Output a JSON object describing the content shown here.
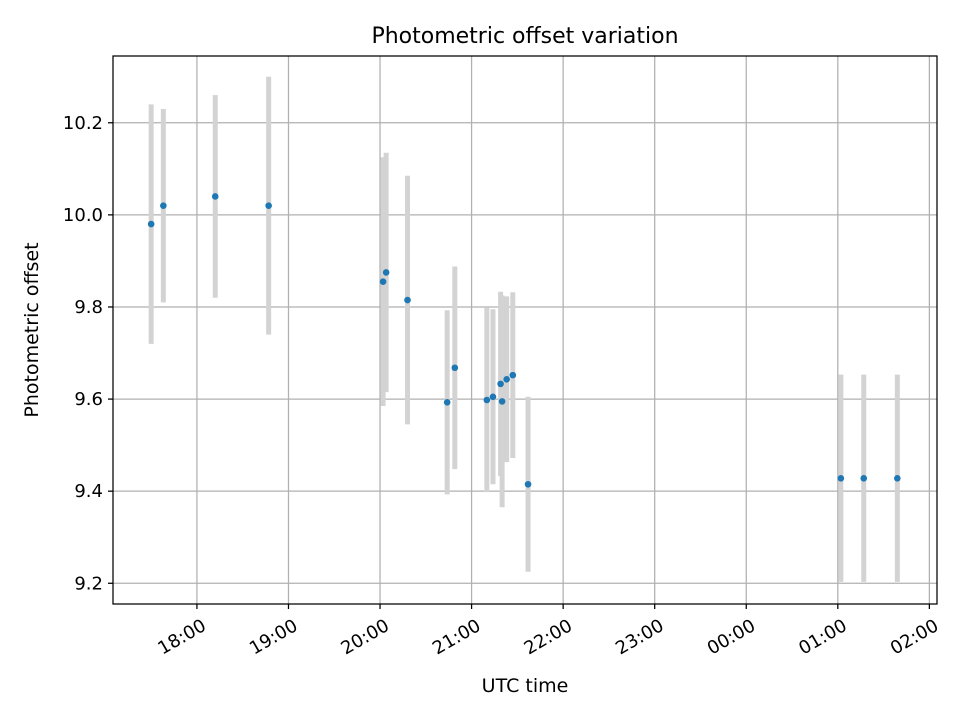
{
  "chart_data": {
    "type": "scatter",
    "title": "Photometric offset variation",
    "xlabel": "UTC time",
    "ylabel": "Photometric offset",
    "x_axis": "time",
    "xlim": [
      "17:05",
      "02:05"
    ],
    "ylim": [
      9.155,
      10.345
    ],
    "xticks": [
      {
        "label": "18:00",
        "time": "18:00"
      },
      {
        "label": "19:00",
        "time": "19:00"
      },
      {
        "label": "20:00",
        "time": "20:00"
      },
      {
        "label": "21:00",
        "time": "21:00"
      },
      {
        "label": "22:00",
        "time": "22:00"
      },
      {
        "label": "23:00",
        "time": "23:00"
      },
      {
        "label": "00:00",
        "time": "00:00"
      },
      {
        "label": "01:00",
        "time": "01:00"
      },
      {
        "label": "02:00",
        "time": "02:00"
      }
    ],
    "yticks": [
      {
        "label": "9.2",
        "value": 9.2
      },
      {
        "label": "9.4",
        "value": 9.4
      },
      {
        "label": "9.6",
        "value": 9.6
      },
      {
        "label": "9.8",
        "value": 9.8
      },
      {
        "label": "10.0",
        "value": 10.0
      },
      {
        "label": "10.2",
        "value": 10.2
      }
    ],
    "grid": true,
    "marker_color": "#1f77b4",
    "errorbar_color": "#d3d3d3",
    "points": [
      {
        "time": "17:30",
        "y": 9.98,
        "err": 0.26
      },
      {
        "time": "17:38",
        "y": 10.02,
        "err": 0.21
      },
      {
        "time": "18:12",
        "y": 10.04,
        "err": 0.22
      },
      {
        "time": "18:47",
        "y": 10.02,
        "err": 0.28
      },
      {
        "time": "20:02",
        "y": 9.855,
        "err": 0.27
      },
      {
        "time": "20:04",
        "y": 9.875,
        "err": 0.26
      },
      {
        "time": "20:18",
        "y": 9.815,
        "err": 0.27
      },
      {
        "time": "20:44",
        "y": 9.593,
        "err": 0.2
      },
      {
        "time": "20:49",
        "y": 9.668,
        "err": 0.22
      },
      {
        "time": "21:10",
        "y": 9.598,
        "err": 0.2
      },
      {
        "time": "21:14",
        "y": 9.605,
        "err": 0.19
      },
      {
        "time": "21:19",
        "y": 9.633,
        "err": 0.2
      },
      {
        "time": "21:20",
        "y": 9.595,
        "err": 0.23
      },
      {
        "time": "21:23",
        "y": 9.643,
        "err": 0.18
      },
      {
        "time": "21:27",
        "y": 9.652,
        "err": 0.18
      },
      {
        "time": "21:37",
        "y": 9.415,
        "err": 0.19
      },
      {
        "time": "01:02",
        "y": 9.428,
        "err": 0.225
      },
      {
        "time": "01:17",
        "y": 9.428,
        "err": 0.225
      },
      {
        "time": "01:39",
        "y": 9.428,
        "err": 0.225
      }
    ]
  }
}
